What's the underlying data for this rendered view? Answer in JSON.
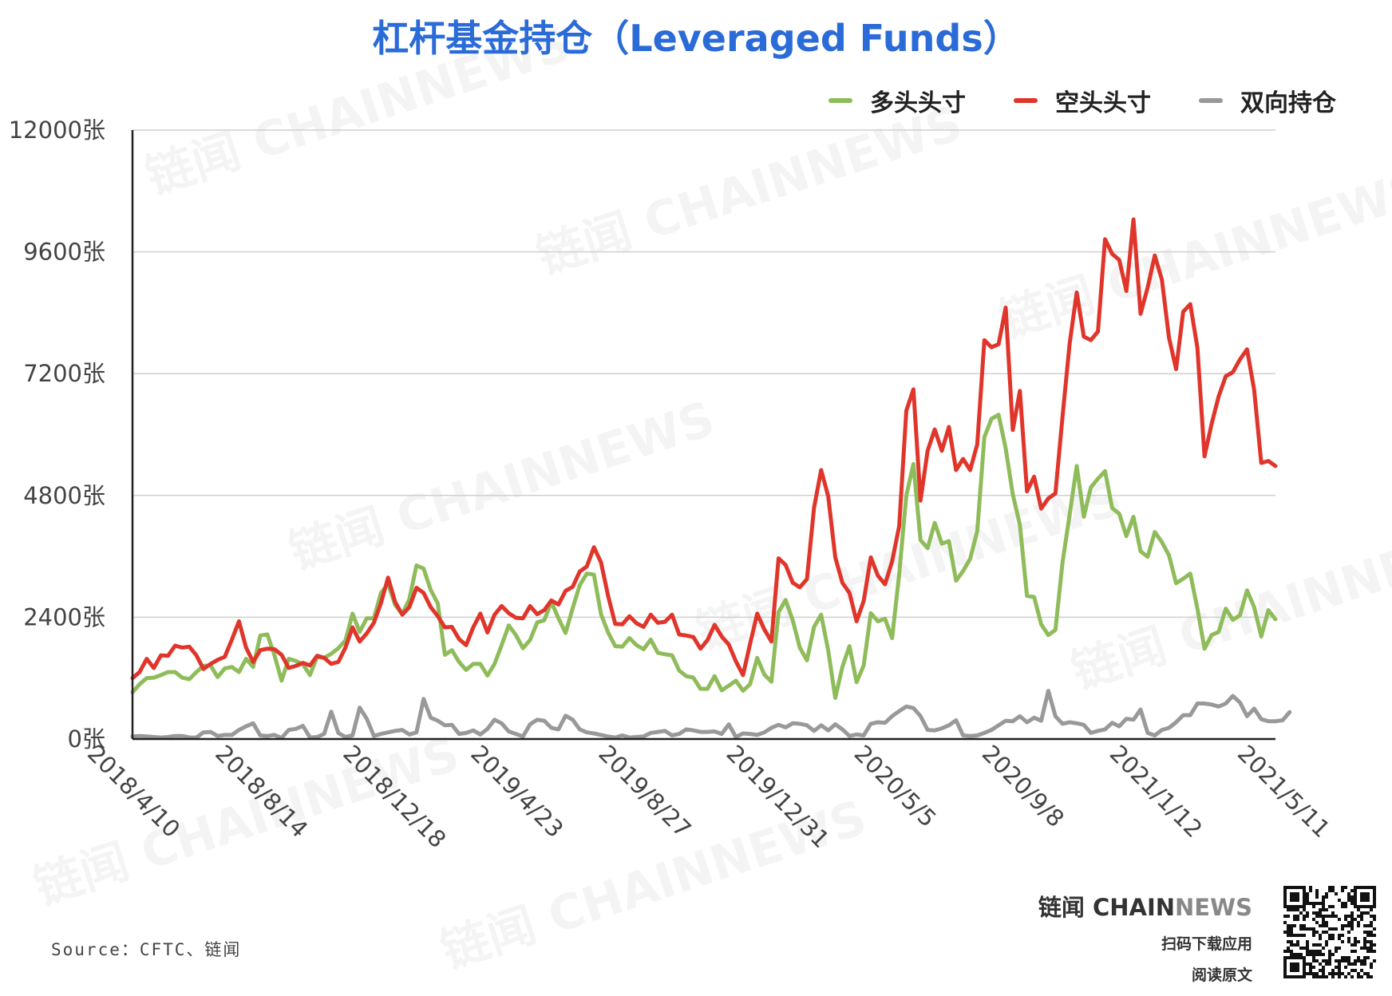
{
  "chart_data": {
    "type": "line",
    "title": "杠杆基金持仓（Leveraged Funds）",
    "xlabel": "",
    "ylabel": "",
    "ylim": [
      0,
      12000
    ],
    "y_ticks": [
      "0张",
      "2400张",
      "4800张",
      "7200张",
      "9600张",
      "12000张"
    ],
    "x_ticks": [
      "2018/4/10",
      "2018/8/14",
      "2018/12/18",
      "2019/4/23",
      "2019/8/27",
      "2019/12/31",
      "2020/5/5",
      "2020/9/8",
      "2021/1/12",
      "2021/5/11"
    ],
    "x_tick_positions": [
      0,
      18,
      36,
      54,
      72,
      90,
      108,
      126,
      144,
      162
    ],
    "grid": true,
    "legend_position": "top-right",
    "series": [
      {
        "name": "多头头寸",
        "color": "#8fbc5a",
        "values": [
          920,
          1080,
          1200,
          1210,
          1260,
          1320,
          1320,
          1210,
          1180,
          1320,
          1440,
          1450,
          1220,
          1390,
          1420,
          1320,
          1580,
          1420,
          2040,
          2060,
          1650,
          1150,
          1580,
          1540,
          1470,
          1260,
          1620,
          1600,
          1680,
          1790,
          1940,
          2470,
          2110,
          2380,
          2380,
          2880,
          3060,
          2640,
          2460,
          2760,
          3420,
          3360,
          2940,
          2670,
          1660,
          1750,
          1520,
          1360,
          1480,
          1480,
          1250,
          1480,
          1850,
          2240,
          2050,
          1790,
          1950,
          2300,
          2340,
          2700,
          2380,
          2090,
          2580,
          3030,
          3260,
          3240,
          2460,
          2100,
          1830,
          1820,
          1990,
          1850,
          1770,
          1960,
          1700,
          1670,
          1650,
          1350,
          1240,
          1210,
          990,
          990,
          1240,
          960,
          1050,
          1150,
          950,
          1080,
          1600,
          1270,
          1130,
          2500,
          2740,
          2340,
          1800,
          1550,
          2210,
          2450,
          1740,
          810,
          1420,
          1830,
          1120,
          1450,
          2480,
          2320,
          2370,
          1990,
          3250,
          4800,
          5420,
          3920,
          3760,
          4260,
          3850,
          3900,
          3120,
          3310,
          3550,
          4100,
          5950,
          6310,
          6390,
          5730,
          4820,
          4220,
          2820,
          2800,
          2260,
          2050,
          2150,
          3480,
          4420,
          5380,
          4380,
          4960,
          5130,
          5280,
          4550,
          4440,
          4000,
          4380,
          3700,
          3590,
          4080,
          3880,
          3620,
          3070,
          3160,
          3260,
          2570,
          1780,
          2050,
          2110,
          2570,
          2350,
          2440,
          2930,
          2600,
          2020,
          2540,
          2360
        ]
      },
      {
        "name": "空头头寸",
        "color": "#e0352b",
        "values": [
          1200,
          1320,
          1580,
          1400,
          1650,
          1640,
          1840,
          1800,
          1820,
          1650,
          1380,
          1480,
          1560,
          1620,
          1960,
          2320,
          1800,
          1520,
          1750,
          1780,
          1770,
          1660,
          1400,
          1440,
          1500,
          1450,
          1640,
          1600,
          1480,
          1520,
          1800,
          2200,
          1920,
          2080,
          2290,
          2680,
          3180,
          2700,
          2450,
          2600,
          2980,
          2880,
          2600,
          2420,
          2200,
          2210,
          1970,
          1850,
          2200,
          2470,
          2100,
          2450,
          2620,
          2480,
          2390,
          2380,
          2620,
          2460,
          2540,
          2730,
          2650,
          2920,
          3000,
          3300,
          3400,
          3780,
          3480,
          2820,
          2270,
          2260,
          2420,
          2280,
          2210,
          2450,
          2290,
          2310,
          2450,
          2060,
          2040,
          2010,
          1780,
          1950,
          2250,
          2020,
          1860,
          1530,
          1260,
          1880,
          2470,
          2160,
          1920,
          3560,
          3430,
          3080,
          2990,
          3150,
          4560,
          5300,
          4780,
          3580,
          3080,
          2880,
          2320,
          2720,
          3580,
          3220,
          3050,
          3500,
          4200,
          6470,
          6890,
          4700,
          5680,
          6100,
          5680,
          6150,
          5300,
          5520,
          5300,
          5810,
          7860,
          7720,
          7780,
          8500,
          6090,
          6860,
          4880,
          5170,
          4540,
          4740,
          4840,
          6350,
          7790,
          8800,
          7930,
          7860,
          8030,
          9850,
          9560,
          9440,
          8830,
          10240,
          8380,
          8900,
          9530,
          9050,
          7910,
          7290,
          8420,
          8570,
          7710,
          5570,
          6210,
          6750,
          7150,
          7230,
          7480,
          7680,
          6880,
          5440,
          5480,
          5380
        ]
      },
      {
        "name": "双向持仓",
        "color": "#999999",
        "values": [
          50,
          60,
          50,
          40,
          30,
          40,
          60,
          60,
          30,
          30,
          130,
          140,
          60,
          80,
          80,
          180,
          250,
          310,
          70,
          60,
          80,
          20,
          180,
          200,
          260,
          30,
          40,
          100,
          540,
          120,
          40,
          70,
          620,
          400,
          60,
          100,
          130,
          160,
          180,
          90,
          130,
          790,
          420,
          360,
          270,
          280,
          100,
          120,
          170,
          90,
          200,
          380,
          310,
          150,
          100,
          50,
          290,
          380,
          360,
          220,
          190,
          460,
          380,
          190,
          130,
          110,
          80,
          50,
          30,
          70,
          30,
          40,
          50,
          120,
          140,
          160,
          70,
          100,
          190,
          170,
          140,
          140,
          150,
          100,
          290,
          40,
          110,
          100,
          80,
          130,
          220,
          280,
          230,
          310,
          300,
          270,
          160,
          270,
          170,
          290,
          190,
          60,
          90,
          70,
          300,
          330,
          320,
          450,
          550,
          640,
          610,
          450,
          180,
          170,
          210,
          270,
          370,
          70,
          60,
          70,
          120,
          180,
          270,
          360,
          350,
          450,
          330,
          420,
          360,
          950,
          450,
          300,
          330,
          310,
          280,
          120,
          160,
          190,
          320,
          250,
          400,
          380,
          580,
          120,
          70,
          180,
          220,
          330,
          470,
          470,
          700,
          700,
          680,
          640,
          700,
          850,
          720,
          450,
          600,
          390,
          350,
          350,
          370,
          530
        ]
      }
    ]
  },
  "footer": {
    "source": "Source：CFTC、链闻",
    "brand_cn": "链闻",
    "brand_chain": "CHAIN",
    "brand_news": "NEWS",
    "brand_line1": "扫码下载应用",
    "brand_line2": "阅读原文"
  },
  "watermark_text": "链闻 CHAINNEWS"
}
